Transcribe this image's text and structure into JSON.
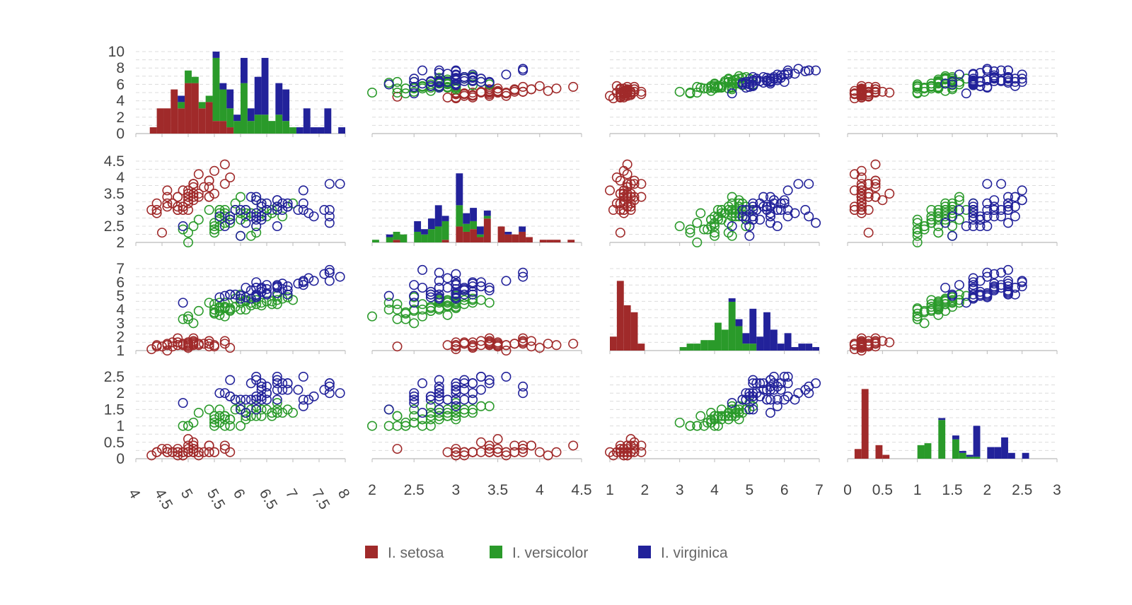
{
  "chart_data": {
    "type": "scatter",
    "variables": [
      "sepal_length",
      "sepal_width",
      "petal_length",
      "petal_width"
    ],
    "axes": [
      {
        "range": [
          4,
          8
        ],
        "ticks": [
          4,
          4.5,
          5,
          5.5,
          6,
          6.5,
          7,
          7.5,
          8
        ],
        "tick_labels": [
          "4",
          "4.5",
          "5",
          "5.5",
          "6",
          "6.5",
          "7",
          "7.5",
          "8"
        ],
        "rotated": true
      },
      {
        "range": [
          2,
          4.5
        ],
        "ticks": [
          2,
          2.5,
          3,
          3.5,
          4,
          4.5
        ],
        "tick_labels": [
          "2",
          "2.5",
          "3",
          "3.5",
          "4",
          "4.5"
        ],
        "rotated": false
      },
      {
        "range": [
          1,
          7
        ],
        "ticks": [
          1,
          2,
          3,
          4,
          5,
          6,
          7
        ],
        "tick_labels": [
          "1",
          "2",
          "3",
          "4",
          "5",
          "6",
          "7"
        ],
        "rotated": false
      },
      {
        "range": [
          0,
          3
        ],
        "ticks": [
          0,
          0.5,
          1,
          1.5,
          2,
          2.5,
          3
        ],
        "tick_labels": [
          "0",
          "0.5",
          "1",
          "1.5",
          "2",
          "2.5",
          "3"
        ],
        "rotated": false
      }
    ],
    "y_axes": [
      {
        "range": [
          0,
          10
        ],
        "ticks": [
          0,
          2,
          4,
          6,
          8,
          10
        ],
        "tick_labels": [
          "0",
          "2",
          "4",
          "6",
          "8",
          "10"
        ]
      },
      {
        "range": [
          2,
          4.5
        ],
        "ticks": [
          2,
          2.5,
          3,
          3.5,
          4,
          4.5
        ],
        "tick_labels": [
          "2",
          "2.5",
          "3",
          "3.5",
          "4",
          "4.5"
        ]
      },
      {
        "range": [
          1,
          7
        ],
        "ticks": [
          1,
          2,
          3,
          4,
          5,
          6,
          7
        ],
        "tick_labels": [
          "1",
          "2",
          "3",
          "4",
          "5",
          "6",
          "7"
        ]
      },
      {
        "range": [
          0,
          2.5
        ],
        "ticks": [
          0,
          0.5,
          1,
          1.5,
          2,
          2.5
        ],
        "tick_labels": [
          "0",
          "0.5",
          "1",
          "1.5",
          "2",
          "2.5"
        ]
      }
    ],
    "diagonal": "stacked-histogram",
    "grid": true,
    "legend_position": "bottom-center",
    "series": [
      {
        "name": "I. setosa",
        "color": "#a02a2a",
        "data": [
          [
            5.1,
            3.5,
            1.4,
            0.2
          ],
          [
            4.9,
            3.0,
            1.4,
            0.2
          ],
          [
            4.7,
            3.2,
            1.3,
            0.2
          ],
          [
            4.6,
            3.1,
            1.5,
            0.2
          ],
          [
            5.0,
            3.6,
            1.4,
            0.2
          ],
          [
            5.4,
            3.9,
            1.7,
            0.4
          ],
          [
            4.6,
            3.4,
            1.4,
            0.3
          ],
          [
            5.0,
            3.4,
            1.5,
            0.2
          ],
          [
            4.4,
            2.9,
            1.4,
            0.2
          ],
          [
            4.9,
            3.1,
            1.5,
            0.1
          ],
          [
            5.4,
            3.7,
            1.5,
            0.2
          ],
          [
            4.8,
            3.4,
            1.6,
            0.2
          ],
          [
            4.8,
            3.0,
            1.4,
            0.1
          ],
          [
            4.3,
            3.0,
            1.1,
            0.1
          ],
          [
            5.8,
            4.0,
            1.2,
            0.2
          ],
          [
            5.7,
            4.4,
            1.5,
            0.4
          ],
          [
            5.4,
            3.9,
            1.3,
            0.4
          ],
          [
            5.1,
            3.5,
            1.4,
            0.3
          ],
          [
            5.7,
            3.8,
            1.7,
            0.3
          ],
          [
            5.1,
            3.8,
            1.5,
            0.3
          ],
          [
            5.4,
            3.4,
            1.7,
            0.2
          ],
          [
            5.1,
            3.7,
            1.5,
            0.4
          ],
          [
            4.6,
            3.6,
            1.0,
            0.2
          ],
          [
            5.1,
            3.3,
            1.7,
            0.5
          ],
          [
            4.8,
            3.4,
            1.9,
            0.2
          ],
          [
            5.0,
            3.0,
            1.6,
            0.2
          ],
          [
            5.0,
            3.4,
            1.6,
            0.4
          ],
          [
            5.2,
            3.5,
            1.5,
            0.2
          ],
          [
            5.2,
            3.4,
            1.4,
            0.2
          ],
          [
            4.7,
            3.2,
            1.6,
            0.2
          ],
          [
            4.8,
            3.1,
            1.6,
            0.2
          ],
          [
            5.4,
            3.4,
            1.5,
            0.4
          ],
          [
            5.2,
            4.1,
            1.5,
            0.1
          ],
          [
            5.5,
            4.2,
            1.4,
            0.2
          ],
          [
            4.9,
            3.1,
            1.5,
            0.2
          ],
          [
            5.0,
            3.2,
            1.2,
            0.2
          ],
          [
            5.5,
            3.5,
            1.3,
            0.2
          ],
          [
            4.9,
            3.6,
            1.4,
            0.1
          ],
          [
            4.4,
            3.0,
            1.3,
            0.2
          ],
          [
            5.1,
            3.4,
            1.5,
            0.2
          ],
          [
            5.0,
            3.5,
            1.3,
            0.3
          ],
          [
            4.5,
            2.3,
            1.3,
            0.3
          ],
          [
            4.4,
            3.2,
            1.3,
            0.2
          ],
          [
            5.0,
            3.5,
            1.6,
            0.6
          ],
          [
            5.1,
            3.8,
            1.9,
            0.4
          ],
          [
            4.8,
            3.0,
            1.4,
            0.3
          ],
          [
            5.1,
            3.8,
            1.6,
            0.2
          ],
          [
            4.6,
            3.2,
            1.4,
            0.2
          ],
          [
            5.3,
            3.7,
            1.5,
            0.2
          ],
          [
            5.0,
            3.3,
            1.4,
            0.2
          ]
        ]
      },
      {
        "name": "I. versicolor",
        "color": "#2a9a2a",
        "data": [
          [
            7.0,
            3.2,
            4.7,
            1.4
          ],
          [
            6.4,
            3.2,
            4.5,
            1.5
          ],
          [
            6.9,
            3.1,
            4.9,
            1.5
          ],
          [
            5.5,
            2.3,
            4.0,
            1.3
          ],
          [
            6.5,
            2.8,
            4.6,
            1.5
          ],
          [
            5.7,
            2.8,
            4.5,
            1.3
          ],
          [
            6.3,
            3.3,
            4.7,
            1.6
          ],
          [
            4.9,
            2.4,
            3.3,
            1.0
          ],
          [
            6.6,
            2.9,
            4.6,
            1.3
          ],
          [
            5.2,
            2.7,
            3.9,
            1.4
          ],
          [
            5.0,
            2.0,
            3.5,
            1.0
          ],
          [
            5.9,
            3.0,
            4.2,
            1.5
          ],
          [
            6.0,
            2.2,
            4.0,
            1.0
          ],
          [
            6.1,
            2.9,
            4.7,
            1.4
          ],
          [
            5.6,
            2.9,
            3.6,
            1.3
          ],
          [
            6.7,
            3.1,
            4.4,
            1.4
          ],
          [
            5.6,
            3.0,
            4.5,
            1.5
          ],
          [
            5.8,
            2.7,
            4.1,
            1.0
          ],
          [
            6.2,
            2.2,
            4.5,
            1.5
          ],
          [
            5.6,
            2.5,
            3.9,
            1.1
          ],
          [
            5.9,
            3.2,
            4.8,
            1.8
          ],
          [
            6.1,
            2.8,
            4.0,
            1.3
          ],
          [
            6.3,
            2.5,
            4.9,
            1.5
          ],
          [
            6.1,
            2.8,
            4.7,
            1.2
          ],
          [
            6.4,
            2.9,
            4.3,
            1.3
          ],
          [
            6.6,
            3.0,
            4.4,
            1.4
          ],
          [
            6.8,
            2.8,
            4.8,
            1.4
          ],
          [
            6.7,
            3.0,
            5.0,
            1.7
          ],
          [
            6.0,
            2.9,
            4.5,
            1.5
          ],
          [
            5.7,
            2.6,
            3.5,
            1.0
          ],
          [
            5.5,
            2.4,
            3.8,
            1.1
          ],
          [
            5.5,
            2.4,
            3.7,
            1.0
          ],
          [
            5.8,
            2.7,
            3.9,
            1.2
          ],
          [
            6.0,
            2.7,
            5.1,
            1.6
          ],
          [
            5.4,
            3.0,
            4.5,
            1.5
          ],
          [
            6.0,
            3.4,
            4.5,
            1.6
          ],
          [
            6.7,
            3.1,
            4.7,
            1.5
          ],
          [
            6.3,
            2.3,
            4.4,
            1.3
          ],
          [
            5.6,
            3.0,
            4.1,
            1.3
          ],
          [
            5.5,
            2.5,
            4.0,
            1.3
          ],
          [
            5.5,
            2.6,
            4.4,
            1.2
          ],
          [
            6.1,
            3.0,
            4.6,
            1.4
          ],
          [
            5.8,
            2.6,
            4.0,
            1.2
          ],
          [
            5.0,
            2.3,
            3.3,
            1.0
          ],
          [
            5.6,
            2.7,
            4.2,
            1.3
          ],
          [
            5.7,
            3.0,
            4.2,
            1.2
          ],
          [
            5.7,
            2.9,
            4.2,
            1.3
          ],
          [
            6.2,
            2.9,
            4.3,
            1.3
          ],
          [
            5.1,
            2.5,
            3.0,
            1.1
          ],
          [
            5.7,
            2.8,
            4.1,
            1.3
          ]
        ]
      },
      {
        "name": "I. virginica",
        "color": "#22229a",
        "data": [
          [
            6.3,
            3.3,
            6.0,
            2.5
          ],
          [
            5.8,
            2.7,
            5.1,
            1.9
          ],
          [
            7.1,
            3.0,
            5.9,
            2.1
          ],
          [
            6.3,
            2.9,
            5.6,
            1.8
          ],
          [
            6.5,
            3.0,
            5.8,
            2.2
          ],
          [
            7.6,
            3.0,
            6.6,
            2.1
          ],
          [
            4.9,
            2.5,
            4.5,
            1.7
          ],
          [
            7.3,
            2.9,
            6.3,
            1.8
          ],
          [
            6.7,
            2.5,
            5.8,
            1.8
          ],
          [
            7.2,
            3.6,
            6.1,
            2.5
          ],
          [
            6.5,
            3.2,
            5.1,
            2.0
          ],
          [
            6.4,
            2.7,
            5.3,
            1.9
          ],
          [
            6.8,
            3.0,
            5.5,
            2.1
          ],
          [
            5.7,
            2.5,
            5.0,
            2.0
          ],
          [
            5.8,
            2.8,
            5.1,
            2.4
          ],
          [
            6.4,
            3.2,
            5.3,
            2.3
          ],
          [
            6.5,
            3.0,
            5.5,
            1.8
          ],
          [
            7.7,
            3.8,
            6.7,
            2.2
          ],
          [
            7.7,
            2.6,
            6.9,
            2.3
          ],
          [
            6.0,
            2.2,
            5.0,
            1.5
          ],
          [
            6.9,
            3.2,
            5.7,
            2.3
          ],
          [
            5.6,
            2.8,
            4.9,
            2.0
          ],
          [
            7.7,
            2.8,
            6.7,
            2.0
          ],
          [
            6.3,
            2.7,
            4.9,
            1.8
          ],
          [
            6.7,
            3.3,
            5.7,
            2.1
          ],
          [
            7.2,
            3.2,
            6.0,
            1.8
          ],
          [
            6.2,
            2.8,
            4.8,
            1.8
          ],
          [
            6.1,
            3.0,
            4.9,
            1.8
          ],
          [
            6.4,
            2.8,
            5.6,
            2.1
          ],
          [
            7.2,
            3.0,
            5.8,
            1.6
          ],
          [
            7.4,
            2.8,
            6.1,
            1.9
          ],
          [
            7.9,
            3.8,
            6.4,
            2.0
          ],
          [
            6.4,
            2.8,
            5.6,
            2.2
          ],
          [
            6.3,
            2.8,
            5.1,
            1.5
          ],
          [
            6.1,
            2.6,
            5.6,
            1.4
          ],
          [
            7.7,
            3.0,
            6.1,
            2.3
          ],
          [
            6.3,
            3.4,
            5.6,
            2.4
          ],
          [
            6.4,
            3.1,
            5.5,
            1.8
          ],
          [
            6.0,
            3.0,
            4.8,
            1.8
          ],
          [
            6.9,
            3.1,
            5.4,
            2.1
          ],
          [
            6.7,
            3.1,
            5.6,
            2.4
          ],
          [
            6.9,
            3.1,
            5.1,
            2.3
          ],
          [
            5.8,
            2.7,
            5.1,
            1.9
          ],
          [
            6.8,
            3.2,
            5.9,
            2.3
          ],
          [
            6.7,
            3.3,
            5.7,
            2.5
          ],
          [
            6.7,
            3.0,
            5.2,
            2.3
          ],
          [
            6.3,
            2.5,
            5.0,
            1.9
          ],
          [
            6.5,
            3.0,
            5.2,
            2.0
          ],
          [
            6.2,
            3.4,
            5.4,
            2.3
          ],
          [
            5.9,
            3.0,
            5.1,
            1.8
          ]
        ]
      }
    ]
  }
}
